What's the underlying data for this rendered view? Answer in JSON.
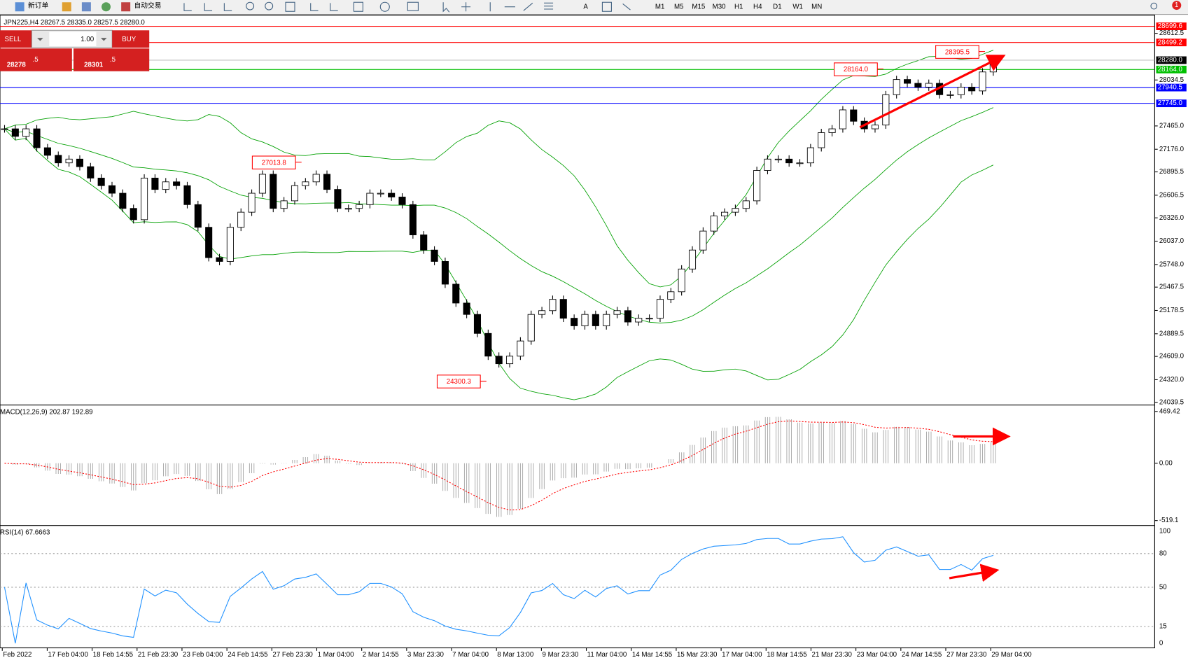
{
  "toolbar": {
    "new_order": "新订单",
    "auto_trading": "自动交易",
    "timeframes": [
      "M1",
      "M5",
      "M15",
      "M30",
      "H1",
      "H4",
      "D1",
      "W1",
      "MN"
    ],
    "notifications": "1"
  },
  "trade_panel": {
    "sell": "SELL",
    "buy": "BUY",
    "lots": "1.00",
    "bid_main": "28278",
    "bid_frac": ".5",
    "ask_main": "28301",
    "ask_frac": ".5"
  },
  "chart_data": [
    {
      "type": "candlestick",
      "title": "JPN225,H4 28267.5 28335.0 28257.5 28280.0",
      "close": [
        27429,
        27336,
        27429,
        27195,
        27101,
        27007,
        27054,
        26960,
        26819,
        26725,
        26631,
        26443,
        26303,
        26819,
        26678,
        26772,
        26725,
        26490,
        26209,
        25833,
        25786,
        26209,
        26396,
        26631,
        26866,
        26443,
        26537,
        26725,
        26772,
        26866,
        26678,
        26443,
        26443,
        26490,
        26631,
        26631,
        26584,
        26490,
        26115,
        25927,
        25786,
        25504,
        25270,
        25129,
        24894,
        24612,
        24518,
        24612,
        24800,
        25129,
        25176,
        25316,
        25082,
        24988,
        25129,
        24988,
        25129,
        25176,
        25035,
        25082,
        25082,
        25316,
        25410,
        25692,
        25927,
        26162,
        26349,
        26396,
        26443,
        26537,
        26913,
        27054,
        27054,
        27007,
        27007,
        27195,
        27382,
        27429,
        27664,
        27523,
        27429,
        27476,
        27852,
        28040,
        27993,
        27946,
        27993,
        27852,
        27852,
        27946,
        27899,
        28134,
        28228
      ],
      "up_color": "#ffffff",
      "down_color": "#000000",
      "band_color": "#00a000",
      "ylim": [
        24020.7,
        28837.8
      ],
      "yticks": [
        28612.5,
        28034.5,
        {
          "value": 27465.0,
          "label": "27465.0"
        },
        {
          "value": 27176.0,
          "label": "27176.0"
        },
        26895.5,
        26606.5,
        {
          "value": 26326.0,
          "label": "26326.0"
        },
        {
          "value": 26037.0,
          "label": "26037.0"
        },
        {
          "value": 25748.0,
          "label": "25748.0"
        },
        25467.5,
        25178.5,
        24889.5,
        {
          "value": 24609.0,
          "label": "24609.0"
        },
        {
          "value": 24320.0,
          "label": "24320.0"
        },
        24039.5
      ],
      "price_lines": [
        {
          "value": 28699.6,
          "color": "#ff0000"
        },
        {
          "value": 28499.2,
          "color": "#ff0000"
        },
        {
          "value": 28280.0,
          "label": "28280.0",
          "color": "#000000"
        },
        {
          "value": 28164.0,
          "label": "28164.0",
          "color": "#00c000"
        },
        {
          "value": 27940.5,
          "color": "#0000ff"
        },
        {
          "value": 27745.0,
          "label": "27745.0",
          "color": "#0000ff"
        }
      ],
      "annotations": [
        "28395.5",
        "28164.0",
        "27013.8",
        "24300.3"
      ],
      "x_labels": [
        "Feb 2022",
        "17 Feb 04:00",
        "18 Feb 14:55",
        "21 Feb 23:30",
        "23 Feb 04:00",
        "24 Feb 14:55",
        "27 Feb 23:30",
        "1 Mar 04:00",
        "2 Mar 14:55",
        "3 Mar 23:30",
        "7 Mar 04:00",
        "8 Mar 13:00",
        "9 Mar 23:30",
        "11 Mar 04:00",
        "14 Mar 14:55",
        "15 Mar 23:30",
        "17 Mar 04:00",
        "18 Mar 14:55",
        "21 Mar 23:30",
        "23 Mar 04:00",
        "24 Mar 14:55",
        "27 Mar 23:30",
        "29 Mar 04:00"
      ]
    },
    {
      "type": "macd",
      "title": "MACD(12,26,9) 202.87 192.89",
      "ylim": [
        -553.4,
        517.5
      ],
      "yticks": [
        469.42,
        {
          "value": 0,
          "label": "0.00"
        },
        -519.1
      ],
      "color": "#a0a0a0",
      "signal_color": "#ff0000"
    },
    {
      "type": "rsi",
      "title": "RSI(14) 67.6663",
      "ylim": [
        -4.05,
        104.05
      ],
      "yticks": [
        100,
        80,
        50,
        15,
        0
      ],
      "color": "#1e90ff"
    }
  ]
}
